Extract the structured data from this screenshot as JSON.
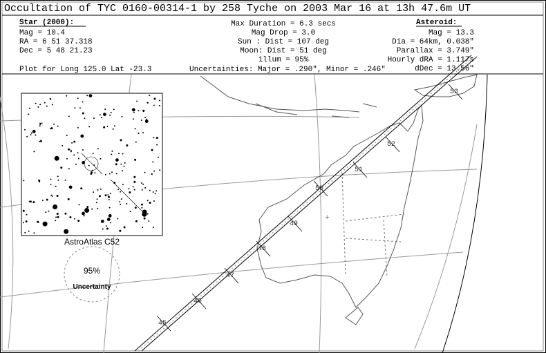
{
  "header": {
    "title": "Occultation of TYC 0160-00314-1 by 258 Tyche on  2003 Mar 16 at 13h 47.6m UT"
  },
  "star": {
    "heading": "Star (2000):",
    "lines": [
      "Mag = 10.4",
      "RA  =   6 51 37.318",
      "Dec =   5 48 21.23"
    ]
  },
  "event": {
    "lines": [
      "Max Duration = 6.3 secs",
      "Mag Drop =  3.0",
      "Sun :   Dist = 107 deg",
      "Moon:   Dist = 51 deg",
      "illum = 95%"
    ]
  },
  "asteroid": {
    "heading": "Asteroid:",
    "lines": [
      "Mag = 13.3",
      "Dia = 64km, 0.038\"",
      "Parallax = 3.749\"",
      "Hourly dRA = 1.117s",
      "dDec = 13.56\""
    ]
  },
  "footer": {
    "plot": "Plot for Long 125.0  Lat -23.3",
    "uncertainties": "Uncertainties: Major = .290\", Minor = .246\""
  },
  "star_chart": {
    "label": "AstroAtlas C52"
  },
  "uncertainty": {
    "percent": "95%",
    "label": "Uncertainty"
  },
  "path": {
    "hours": [
      "53",
      "52",
      "51",
      "50",
      "49",
      "48",
      "47",
      "46",
      "45"
    ]
  }
}
